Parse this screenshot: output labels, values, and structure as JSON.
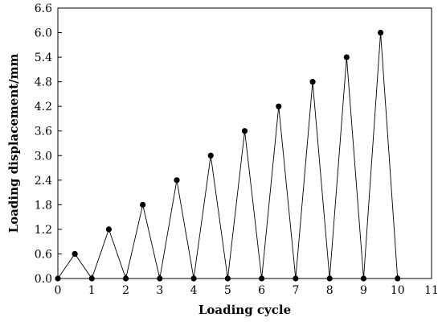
{
  "chart_data": {
    "type": "line",
    "xlabel": "Loading cycle",
    "ylabel": "Loading displacement/mm",
    "xlim": [
      0,
      11
    ],
    "ylim": [
      0,
      6.6
    ],
    "x_ticks": [
      "0",
      "1",
      "2",
      "3",
      "4",
      "5",
      "6",
      "7",
      "8",
      "9",
      "10",
      "11"
    ],
    "y_ticks": [
      "0.0",
      "0.6",
      "1.2",
      "1.8",
      "2.4",
      "3.0",
      "3.6",
      "4.2",
      "4.8",
      "5.4",
      "6.0",
      "6.6"
    ],
    "grid": false,
    "series": [
      {
        "marker": "filled-circle",
        "color": "#000000",
        "x": [
          0,
          0.5,
          1,
          1.5,
          2,
          2.5,
          3,
          3.5,
          4,
          4.5,
          5,
          5.5,
          6,
          6.5,
          7,
          7.5,
          8,
          8.5,
          9,
          9.5,
          10
        ],
        "y": [
          0,
          0.6,
          0,
          1.2,
          0,
          1.8,
          0,
          2.4,
          0,
          3.0,
          0,
          3.6,
          0,
          4.2,
          0,
          4.8,
          0,
          5.4,
          0,
          6.0,
          0
        ]
      }
    ]
  }
}
